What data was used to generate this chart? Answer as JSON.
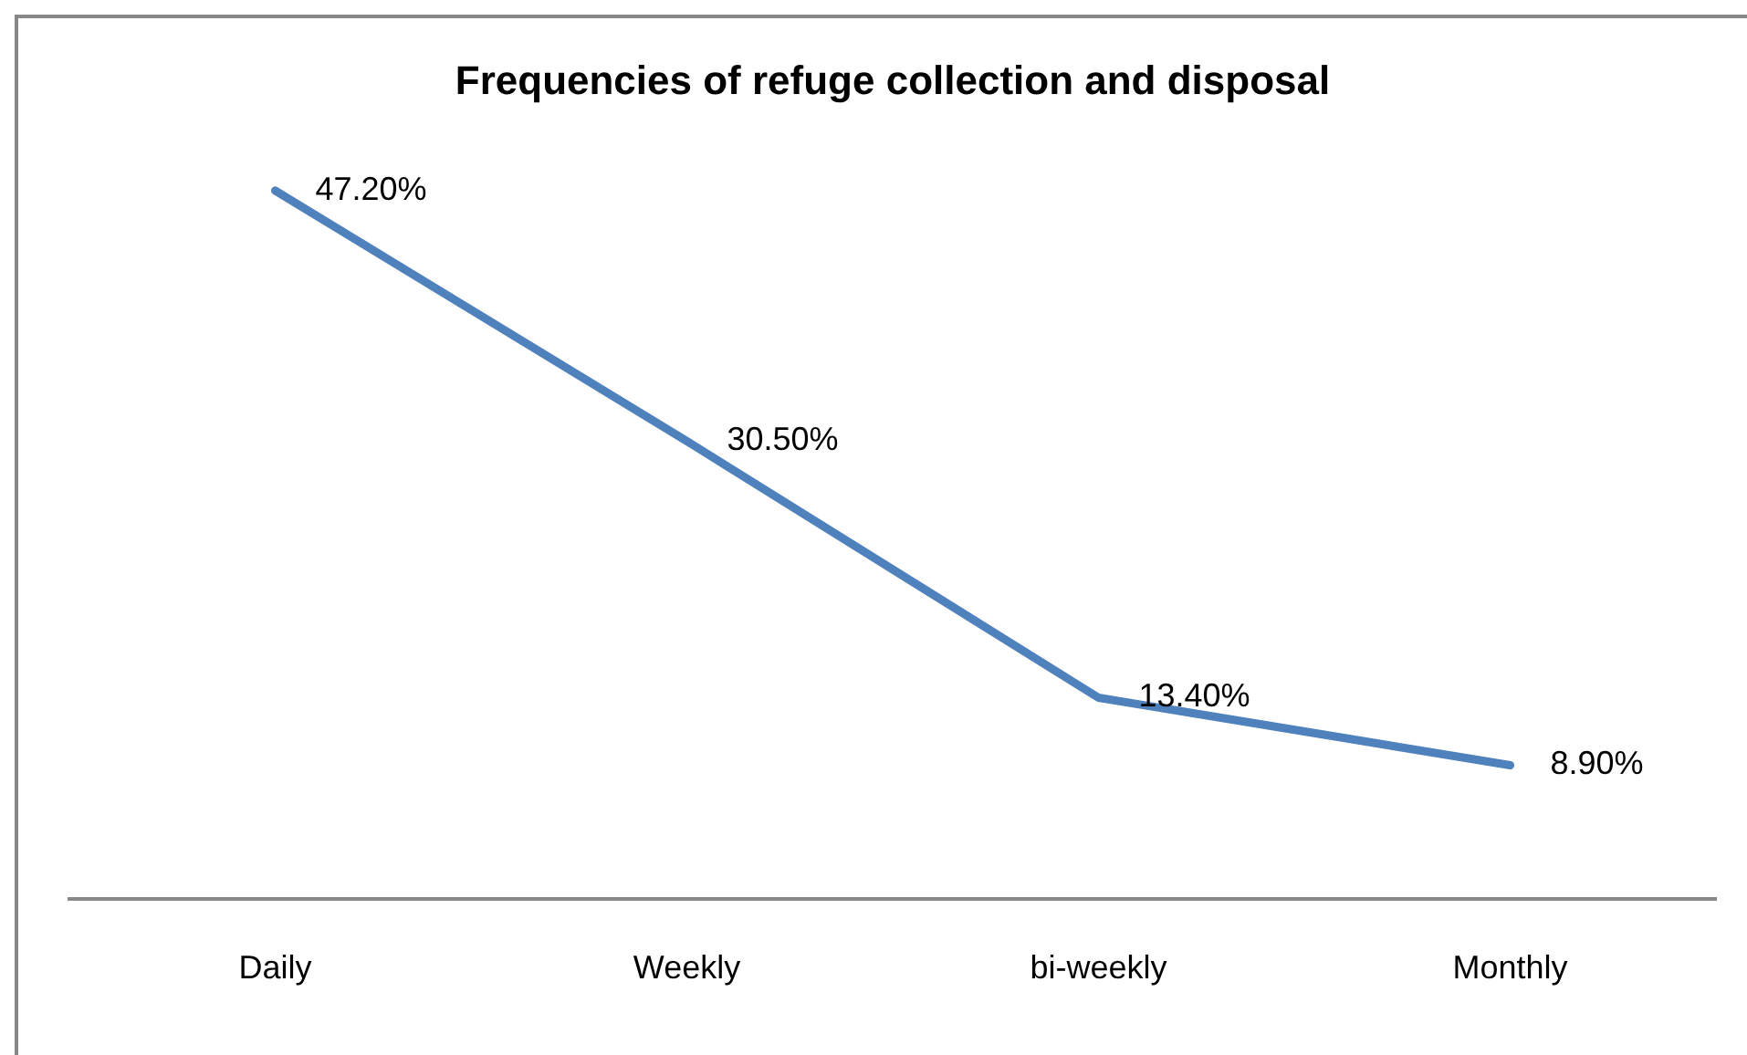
{
  "chart_data": {
    "type": "line",
    "title": "Frequencies of refuge collection and disposal",
    "categories": [
      "Daily",
      "Weekly",
      "bi-weekly",
      "Monthly"
    ],
    "series": [
      {
        "color": "#4f81bd",
        "values": [
          47.2,
          30.5,
          13.4,
          8.9
        ],
        "value_labels": [
          "47.20%",
          "30.50%",
          "13.40%",
          "8.90%"
        ]
      }
    ],
    "tick_labels": "x",
    "grid": false,
    "legend": false,
    "marker": "none"
  }
}
